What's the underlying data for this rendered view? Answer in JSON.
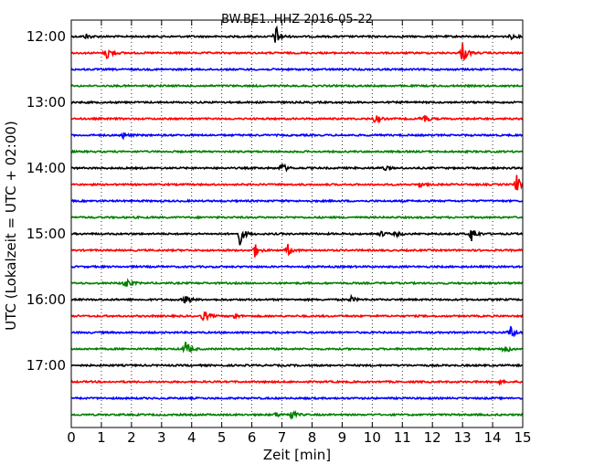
{
  "chart_data": {
    "type": "line",
    "title": "BW.BE1..HHZ 2016-05-22",
    "xlabel": "Zeit  [min]",
    "ylabel": "UTC (Lokalzeit = UTC + 02:00)",
    "xlim": [
      0,
      15
    ],
    "xticks": [
      "0",
      "1",
      "2",
      "3",
      "4",
      "5",
      "6",
      "7",
      "8",
      "9",
      "10",
      "11",
      "12",
      "13",
      "14",
      "15"
    ],
    "grid": "vertical-dotted",
    "trace_interval_min": 15,
    "ytick_labels": [
      "12:00",
      "13:00",
      "14:00",
      "15:00",
      "16:00",
      "17:00"
    ],
    "colors": [
      "#000000",
      "#ff0000",
      "#0000ff",
      "#008000"
    ],
    "series": [
      {
        "start": "12:00",
        "color": "#000000",
        "events": [
          [
            0.5,
            0.25
          ],
          [
            6.8,
            1.0
          ],
          [
            14.6,
            0.2
          ]
        ]
      },
      {
        "start": "12:15",
        "color": "#ff0000",
        "events": [
          [
            1.2,
            0.75
          ],
          [
            13.0,
            1.0
          ]
        ]
      },
      {
        "start": "12:30",
        "color": "#0000ff",
        "events": []
      },
      {
        "start": "12:45",
        "color": "#008000",
        "events": []
      },
      {
        "start": "13:00",
        "color": "#000000",
        "events": []
      },
      {
        "start": "13:15",
        "color": "#ff0000",
        "events": [
          [
            10.1,
            0.45
          ],
          [
            11.7,
            0.5
          ]
        ]
      },
      {
        "start": "13:30",
        "color": "#0000ff",
        "events": [
          [
            1.7,
            0.3
          ]
        ]
      },
      {
        "start": "13:45",
        "color": "#008000",
        "events": []
      },
      {
        "start": "14:00",
        "color": "#000000",
        "events": [
          [
            7.0,
            0.5
          ],
          [
            10.4,
            0.2
          ]
        ]
      },
      {
        "start": "14:15",
        "color": "#ff0000",
        "events": [
          [
            11.6,
            0.2
          ],
          [
            14.8,
            0.85
          ]
        ]
      },
      {
        "start": "14:30",
        "color": "#0000ff",
        "events": []
      },
      {
        "start": "14:45",
        "color": "#008000",
        "events": []
      },
      {
        "start": "15:00",
        "color": "#000000",
        "events": [
          [
            5.6,
            0.95
          ],
          [
            10.3,
            0.25
          ],
          [
            10.8,
            0.2
          ],
          [
            13.3,
            0.75
          ]
        ]
      },
      {
        "start": "15:15",
        "color": "#ff0000",
        "events": [
          [
            6.1,
            0.6
          ],
          [
            7.2,
            0.5
          ]
        ]
      },
      {
        "start": "15:30",
        "color": "#0000ff",
        "events": []
      },
      {
        "start": "15:45",
        "color": "#008000",
        "events": [
          [
            1.8,
            0.55
          ]
        ]
      },
      {
        "start": "16:00",
        "color": "#000000",
        "events": [
          [
            3.8,
            0.5
          ],
          [
            9.3,
            0.25
          ]
        ]
      },
      {
        "start": "16:15",
        "color": "#ff0000",
        "events": [
          [
            4.4,
            0.6
          ],
          [
            5.4,
            0.25
          ]
        ]
      },
      {
        "start": "16:30",
        "color": "#0000ff",
        "events": [
          [
            14.6,
            0.6
          ]
        ]
      },
      {
        "start": "16:45",
        "color": "#008000",
        "events": [
          [
            3.8,
            0.7
          ],
          [
            14.4,
            0.45
          ]
        ]
      },
      {
        "start": "17:00",
        "color": "#000000",
        "events": []
      },
      {
        "start": "17:15",
        "color": "#ff0000",
        "events": [
          [
            14.2,
            0.15
          ]
        ]
      },
      {
        "start": "17:30",
        "color": "#0000ff",
        "events": []
      },
      {
        "start": "17:45",
        "color": "#008000",
        "events": [
          [
            6.8,
            0.2
          ],
          [
            7.3,
            0.45
          ]
        ]
      }
    ]
  }
}
